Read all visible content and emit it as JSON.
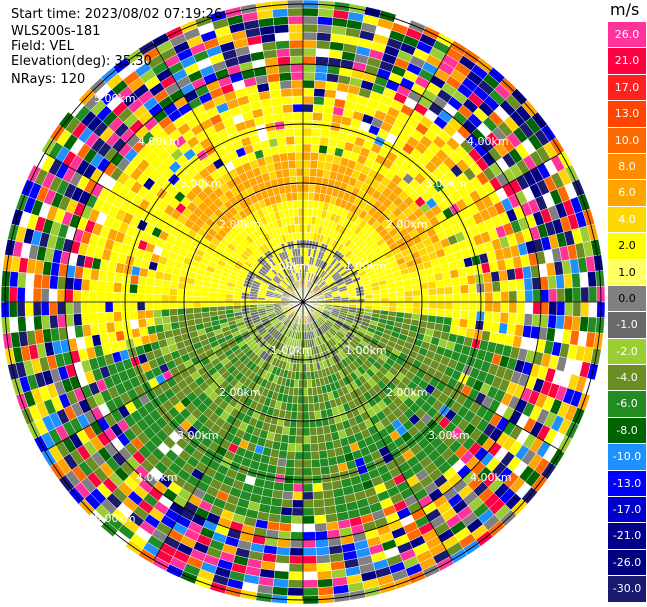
{
  "header": {
    "start_time": "Start time: 2023/08/02 07:19:26",
    "instrument": "WLS200s-181",
    "field": "Field: VEL",
    "elevation": "Elevation(deg): 35.30",
    "nrays": "NRays: 120"
  },
  "colorbar": {
    "unit": "m/s",
    "labels": [
      "26.0",
      "21.0",
      "17.0",
      "13.0",
      "10.0",
      "8.0",
      "6.0",
      "4.0",
      "2.0",
      "1.0",
      "0.0",
      "-1.0",
      "-2.0",
      "-4.0",
      "-6.0",
      "-8.0",
      "-10.0",
      "-13.0",
      "-17.0",
      "-21.0",
      "-26.0",
      "-30.0"
    ],
    "colors": [
      "#ff3399",
      "#ff0040",
      "#ff2020",
      "#ff4500",
      "#ff6a00",
      "#ff8c00",
      "#ffa500",
      "#ffd700",
      "#ffff00",
      "#ffff66",
      "#808080",
      "#696969",
      "#9acd32",
      "#6b8e23",
      "#228b22",
      "#006400",
      "#1e90ff",
      "#0000ff",
      "#0000cd",
      "#00008b",
      "#000080",
      "#191970"
    ]
  },
  "range_labels": [
    "1.00km",
    "1.00km",
    "1.00km",
    "1.00km",
    "2.00km",
    "2.00km",
    "2.00km",
    "2.00km",
    "3.00km",
    "3.00km",
    "3.00km",
    "3.00km",
    "4.00km",
    "4.00km",
    "4.00km",
    "4.00km",
    "5.00km",
    "5.00km"
  ]
}
